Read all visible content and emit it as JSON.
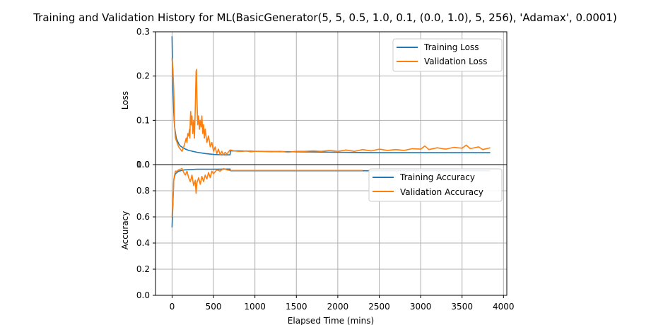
{
  "figure": {
    "title": "Training and Validation History for ML(BasicGenerator(5, 5, 0.5, 1.0, 0.1, (0.0, 1.0), 5, 256), 'Adamax', 0.0001)",
    "xlabel": "Elapsed Time (mins)",
    "x_ticks": [
      0,
      500,
      1000,
      1500,
      2000,
      2500,
      3000,
      3500,
      4000
    ]
  },
  "colors": {
    "training": "#1f77b4",
    "validation": "#ff7f0e",
    "grid": "#b0b0b0"
  },
  "chart_data": [
    {
      "type": "line",
      "ylabel": "Loss",
      "xlim": [
        -200,
        4040
      ],
      "ylim": [
        0,
        0.3
      ],
      "y_ticks": [
        "0.0",
        "0.1",
        "0.2",
        "0.3"
      ],
      "grid": true,
      "legend_position": "top-right",
      "series": [
        {
          "name": "Training Loss",
          "color": "#1f77b4",
          "points": [
            [
              0,
              0.29
            ],
            [
              5,
              0.23
            ],
            [
              10,
              0.18
            ],
            [
              20,
              0.12
            ],
            [
              30,
              0.085
            ],
            [
              50,
              0.06
            ],
            [
              80,
              0.047
            ],
            [
              100,
              0.042
            ],
            [
              150,
              0.036
            ],
            [
              200,
              0.032
            ],
            [
              300,
              0.028
            ],
            [
              400,
              0.025
            ],
            [
              500,
              0.023
            ],
            [
              600,
              0.022
            ],
            [
              700,
              0.022
            ],
            [
              705,
              0.031
            ],
            [
              800,
              0.031
            ],
            [
              1000,
              0.03
            ],
            [
              1500,
              0.029
            ],
            [
              2000,
              0.028
            ],
            [
              2500,
              0.027
            ],
            [
              3000,
              0.027
            ],
            [
              3500,
              0.027
            ],
            [
              3840,
              0.027
            ]
          ]
        },
        {
          "name": "Validation Loss",
          "color": "#ff7f0e",
          "points": [
            [
              0,
              0.24
            ],
            [
              10,
              0.215
            ],
            [
              20,
              0.17
            ],
            [
              30,
              0.09
            ],
            [
              40,
              0.06
            ],
            [
              60,
              0.05
            ],
            [
              80,
              0.04
            ],
            [
              100,
              0.035
            ],
            [
              120,
              0.03
            ],
            [
              150,
              0.045
            ],
            [
              170,
              0.06
            ],
            [
              180,
              0.05
            ],
            [
              190,
              0.07
            ],
            [
              200,
              0.065
            ],
            [
              210,
              0.08
            ],
            [
              215,
              0.06
            ],
            [
              220,
              0.1
            ],
            [
              225,
              0.12
            ],
            [
              230,
              0.09
            ],
            [
              240,
              0.11
            ],
            [
              250,
              0.07
            ],
            [
              260,
              0.1
            ],
            [
              270,
              0.06
            ],
            [
              280,
              0.13
            ],
            [
              290,
              0.21
            ],
            [
              295,
              0.215
            ],
            [
              300,
              0.15
            ],
            [
              310,
              0.09
            ],
            [
              320,
              0.11
            ],
            [
              330,
              0.08
            ],
            [
              340,
              0.1
            ],
            [
              350,
              0.085
            ],
            [
              360,
              0.11
            ],
            [
              370,
              0.07
            ],
            [
              380,
              0.09
            ],
            [
              390,
              0.06
            ],
            [
              400,
              0.08
            ],
            [
              420,
              0.05
            ],
            [
              440,
              0.065
            ],
            [
              460,
              0.04
            ],
            [
              480,
              0.05
            ],
            [
              500,
              0.03
            ],
            [
              520,
              0.04
            ],
            [
              540,
              0.025
            ],
            [
              560,
              0.035
            ],
            [
              580,
              0.022
            ],
            [
              600,
              0.03
            ],
            [
              620,
              0.022
            ],
            [
              640,
              0.028
            ],
            [
              660,
              0.024
            ],
            [
              700,
              0.033
            ],
            [
              750,
              0.031
            ],
            [
              800,
              0.03
            ],
            [
              850,
              0.03
            ],
            [
              900,
              0.031
            ],
            [
              950,
              0.029
            ],
            [
              1000,
              0.03
            ],
            [
              1100,
              0.03
            ],
            [
              1200,
              0.029
            ],
            [
              1300,
              0.03
            ],
            [
              1400,
              0.028
            ],
            [
              1500,
              0.03
            ],
            [
              1600,
              0.03
            ],
            [
              1700,
              0.031
            ],
            [
              1800,
              0.03
            ],
            [
              1900,
              0.032
            ],
            [
              2000,
              0.03
            ],
            [
              2100,
              0.033
            ],
            [
              2200,
              0.03
            ],
            [
              2300,
              0.034
            ],
            [
              2400,
              0.031
            ],
            [
              2500,
              0.035
            ],
            [
              2600,
              0.032
            ],
            [
              2700,
              0.034
            ],
            [
              2800,
              0.032
            ],
            [
              2900,
              0.036
            ],
            [
              3000,
              0.035
            ],
            [
              3050,
              0.042
            ],
            [
              3100,
              0.034
            ],
            [
              3200,
              0.038
            ],
            [
              3300,
              0.035
            ],
            [
              3400,
              0.039
            ],
            [
              3500,
              0.037
            ],
            [
              3550,
              0.044
            ],
            [
              3600,
              0.036
            ],
            [
              3700,
              0.04
            ],
            [
              3750,
              0.034
            ],
            [
              3840,
              0.038
            ]
          ]
        }
      ]
    },
    {
      "type": "line",
      "ylabel": "Accuracy",
      "xlim": [
        -200,
        4040
      ],
      "ylim": [
        0,
        1.0
      ],
      "y_ticks": [
        "0.0",
        "0.2",
        "0.4",
        "0.6",
        "0.8",
        "1.0"
      ],
      "grid": true,
      "legend_position": "top-right",
      "series": [
        {
          "name": "Training Accuracy",
          "color": "#1f77b4",
          "points": [
            [
              0,
              0.52
            ],
            [
              10,
              0.7
            ],
            [
              20,
              0.88
            ],
            [
              40,
              0.93
            ],
            [
              80,
              0.95
            ],
            [
              150,
              0.96
            ],
            [
              300,
              0.965
            ],
            [
              500,
              0.965
            ],
            [
              700,
              0.966
            ],
            [
              705,
              0.953
            ],
            [
              800,
              0.953
            ],
            [
              1500,
              0.953
            ],
            [
              2500,
              0.953
            ],
            [
              3840,
              0.953
            ]
          ]
        },
        {
          "name": "Validation Accuracy",
          "color": "#ff7f0e",
          "points": [
            [
              0,
              0.6
            ],
            [
              10,
              0.72
            ],
            [
              20,
              0.88
            ],
            [
              30,
              0.92
            ],
            [
              40,
              0.95
            ],
            [
              60,
              0.95
            ],
            [
              80,
              0.96
            ],
            [
              100,
              0.965
            ],
            [
              120,
              0.97
            ],
            [
              140,
              0.94
            ],
            [
              160,
              0.92
            ],
            [
              180,
              0.95
            ],
            [
              200,
              0.9
            ],
            [
              220,
              0.87
            ],
            [
              240,
              0.92
            ],
            [
              260,
              0.84
            ],
            [
              280,
              0.88
            ],
            [
              290,
              0.78
            ],
            [
              300,
              0.86
            ],
            [
              320,
              0.9
            ],
            [
              340,
              0.85
            ],
            [
              360,
              0.91
            ],
            [
              380,
              0.87
            ],
            [
              400,
              0.92
            ],
            [
              420,
              0.89
            ],
            [
              440,
              0.94
            ],
            [
              460,
              0.9
            ],
            [
              480,
              0.95
            ],
            [
              500,
              0.93
            ],
            [
              540,
              0.96
            ],
            [
              580,
              0.95
            ],
            [
              620,
              0.97
            ],
            [
              660,
              0.96
            ],
            [
              700,
              0.955
            ],
            [
              800,
              0.955
            ],
            [
              1000,
              0.955
            ],
            [
              1500,
              0.955
            ],
            [
              2000,
              0.955
            ],
            [
              2300,
              0.955
            ]
          ]
        }
      ]
    }
  ]
}
